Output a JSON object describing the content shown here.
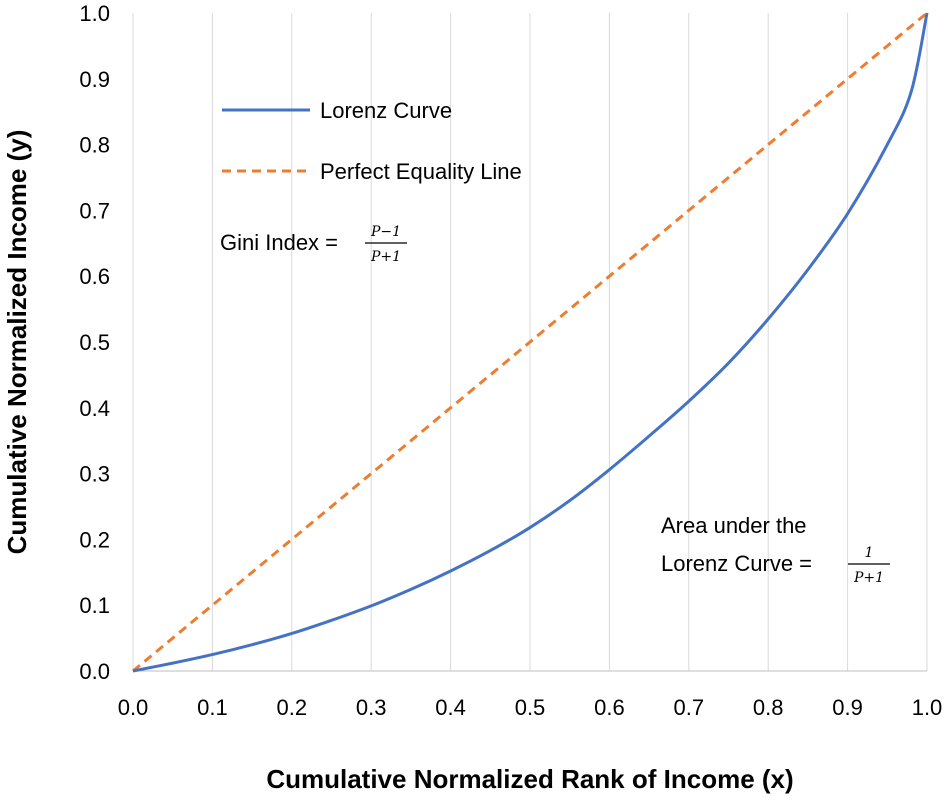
{
  "chart_data": {
    "type": "line",
    "xlabel": "Cumulative Normalized Rank of Income (x)",
    "ylabel": "Cumulative Normalized Income (y)",
    "xlim": [
      0,
      1
    ],
    "ylim": [
      0,
      1
    ],
    "x_ticks": [
      "0.0",
      "0.1",
      "0.2",
      "0.3",
      "0.4",
      "0.5",
      "0.6",
      "0.7",
      "0.8",
      "0.9",
      "1.0"
    ],
    "y_ticks": [
      "0.0",
      "0.1",
      "0.2",
      "0.3",
      "0.4",
      "0.5",
      "0.6",
      "0.7",
      "0.8",
      "0.9",
      "1.0"
    ],
    "grid": "vertical",
    "legend_position": "top-left",
    "series": [
      {
        "name": "Lorenz Curve",
        "color": "#4472C4",
        "style": "solid",
        "x": [
          0.0,
          0.05,
          0.1,
          0.15,
          0.2,
          0.25,
          0.3,
          0.35,
          0.4,
          0.45,
          0.5,
          0.55,
          0.6,
          0.65,
          0.7,
          0.75,
          0.8,
          0.85,
          0.9,
          0.95,
          0.98,
          1.0
        ],
        "y": [
          0.0,
          0.012,
          0.025,
          0.04,
          0.057,
          0.077,
          0.099,
          0.124,
          0.152,
          0.183,
          0.218,
          0.259,
          0.306,
          0.357,
          0.41,
          0.468,
          0.535,
          0.61,
          0.695,
          0.8,
          0.88,
          1.0
        ]
      },
      {
        "name": "Perfect Equality Line",
        "color": "#ED7D31",
        "style": "dashed",
        "x": [
          0,
          1
        ],
        "y": [
          0,
          1
        ]
      }
    ],
    "annotations": {
      "gini_label": "Gini Index =",
      "gini_num": "P−1",
      "gini_den": "P+1",
      "area_line1": "Area under the",
      "area_line2": "Lorenz Curve =",
      "area_num": "1",
      "area_den": "P+1"
    }
  }
}
